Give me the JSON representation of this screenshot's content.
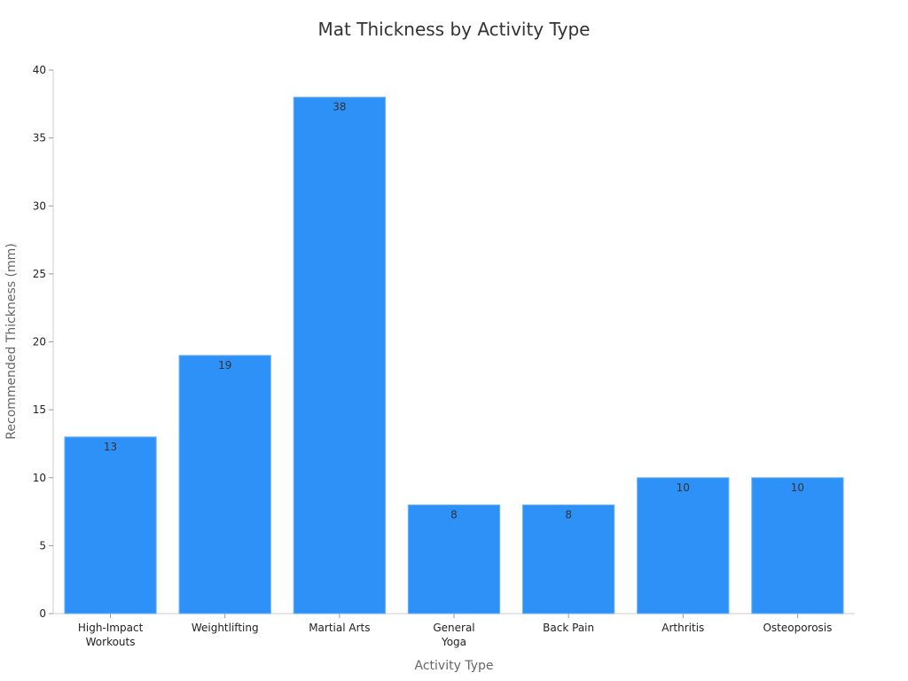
{
  "chart_data": {
    "type": "bar",
    "title": "Mat Thickness by Activity Type",
    "x_label": "Activity Type",
    "y_label": "Recommended Thickness (mm)",
    "categories": [
      "High-Impact\nWorkouts",
      "Weightlifting",
      "Martial Arts",
      "General\nYoga",
      "Back Pain",
      "Arthritis",
      "Osteoporosis"
    ],
    "values": [
      13,
      19,
      38,
      8,
      8,
      10,
      10
    ],
    "color": "#2e91f7",
    "ylim": [
      0,
      40
    ],
    "yticks": [
      0,
      5,
      10,
      15,
      20,
      25,
      30,
      35,
      40
    ],
    "grid": false
  }
}
